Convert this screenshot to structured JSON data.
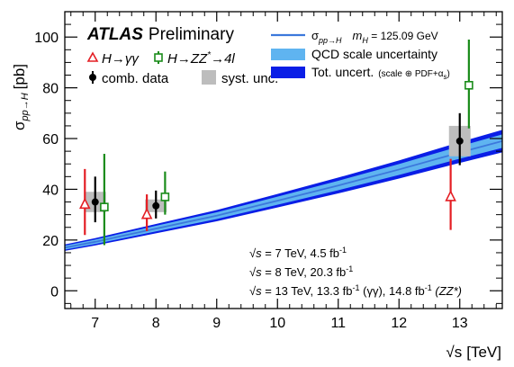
{
  "colors": {
    "theory_central": "#3c78dc",
    "qcd_band": "#5fb4f0",
    "total_band": "#0a1ee6",
    "h_gamgam": "#e41e24",
    "h_zz4l": "#1a8c1a",
    "combined": "#000000",
    "syst_box": "#bdbdbd"
  },
  "labels": {
    "atlas": "ATLAS",
    "preliminary": "Preliminary",
    "h_gamgam_prefix": "H→",
    "h_gamgam_sym": "γγ",
    "h_zz_prefix": "H→ZZ",
    "h_zz_star": "*",
    "h_zz_suffix": "→4l",
    "comb_data": "comb. data",
    "syst_unc": "syst. unc.",
    "sigma": "σ",
    "sigma_sub": "pp→H",
    "mass_label": "m",
    "mass_sub": "H",
    "mass_value": " = 125.09 GeV",
    "qcd_unc": "QCD scale uncertainty",
    "tot_unc": "Tot. uncert.",
    "tot_unc_detail": "(scale ⊕ PDF+α",
    "tot_unc_detail_sub": "s",
    "tot_unc_detail_close": ")",
    "ylabel_sigma": "σ",
    "ylabel_sub": "pp→H",
    "ylabel_unit": "[pb]",
    "xlabel_root": "√s",
    "xlabel_unit": "[TeV]",
    "lumi_root": "√s",
    "lumi_7": " = 7 TeV,  4.5 fb",
    "lumi_8": " = 8 TeV,  20.3 fb",
    "lumi_13a": " = 13 TeV, 13.3 fb",
    "lumi_13b": " (γγ), 14.8 fb",
    "lumi_13c": " (ZZ*)",
    "lumi_exp": "-1"
  },
  "chart_data": {
    "type": "scatter",
    "xlabel": "√s [TeV]",
    "ylabel": "σpp→H [pb]",
    "xlim": [
      6.5,
      13.7
    ],
    "ylim": [
      -7,
      110
    ],
    "xticks": [
      7,
      8,
      9,
      10,
      11,
      12,
      13
    ],
    "yticks": [
      0,
      20,
      40,
      60,
      80,
      100
    ],
    "grid": false,
    "legend_position": "top",
    "theory": {
      "name": "σpp→H  mH = 125.09 GeV",
      "x": [
        6.5,
        7,
        8,
        9,
        10,
        11,
        12,
        13,
        13.7
      ],
      "y": [
        17.0,
        19.3,
        24.5,
        29.6,
        35.5,
        41.5,
        47.8,
        54.5,
        59.0
      ],
      "qcd_rel": [
        0.045,
        0.045,
        0.045,
        0.045,
        0.045,
        0.045,
        0.045,
        0.045,
        0.045
      ],
      "tot_rel": [
        0.075,
        0.075,
        0.075,
        0.075,
        0.075,
        0.075,
        0.075,
        0.075,
        0.075
      ]
    },
    "series": [
      {
        "name": "H→γγ",
        "marker": "open-triangle",
        "points": [
          {
            "x": 6.83,
            "y": 34,
            "err_lo": 12,
            "err_hi": 14
          },
          {
            "x": 7.85,
            "y": 30,
            "err_lo": 6.5,
            "err_hi": 8
          },
          {
            "x": 12.85,
            "y": 37,
            "err_lo": 13,
            "err_hi": 15
          }
        ]
      },
      {
        "name": "H→ZZ*→4l",
        "marker": "open-square",
        "points": [
          {
            "x": 7.15,
            "y": 33,
            "err_lo": 15,
            "err_hi": 21
          },
          {
            "x": 8.15,
            "y": 37,
            "err_lo": 7,
            "err_hi": 10
          },
          {
            "x": 13.15,
            "y": 81,
            "err_lo": 17,
            "err_hi": 18
          }
        ]
      },
      {
        "name": "comb. data",
        "marker": "filled-circle",
        "points": [
          {
            "x": 7,
            "y": 35,
            "err_lo": 8,
            "err_hi": 10,
            "syst": 4
          },
          {
            "x": 8,
            "y": 33.5,
            "err_lo": 5,
            "err_hi": 6,
            "syst": 2.5
          },
          {
            "x": 13,
            "y": 59,
            "err_lo": 9.5,
            "err_hi": 11,
            "syst": 6
          }
        ]
      }
    ]
  }
}
